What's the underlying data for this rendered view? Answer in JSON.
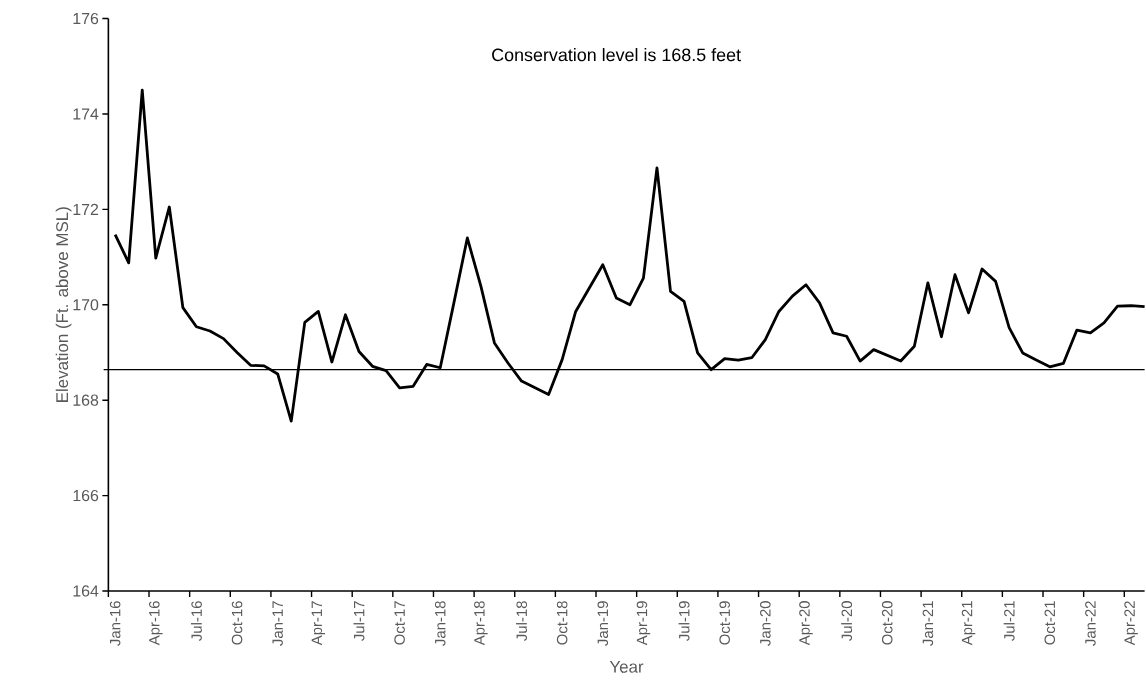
{
  "chart_data": {
    "type": "line",
    "xlabel": "Year",
    "ylabel": "Elevation (Ft. above MSL)",
    "annotations": [
      "Conservation level is 168.5 feet"
    ],
    "categories": [
      "Jan-16",
      null,
      null,
      "Apr-16",
      null,
      null,
      "Jul-16",
      null,
      null,
      "Oct-16",
      null,
      null,
      "Jan-17",
      null,
      null,
      "Apr-17",
      null,
      null,
      "Jul-17",
      null,
      null,
      "Oct-17",
      null,
      null,
      "Jan-18",
      null,
      null,
      "Apr-18",
      null,
      null,
      "Jul-18",
      null,
      null,
      "Oct-18",
      null,
      null,
      "Jan-19",
      null,
      null,
      "Apr-19",
      null,
      null,
      "Jul-19",
      null,
      null,
      "Oct-19",
      null,
      null,
      "Jan-20",
      null,
      null,
      "Apr-20",
      null,
      null,
      "Jul-20",
      null,
      null,
      "Oct-20",
      null,
      null,
      "Jan-21",
      null,
      null,
      "Apr-21",
      null,
      null,
      "Jul-21",
      null,
      null,
      "Oct-21",
      null,
      null,
      "Jan-22",
      null,
      null,
      "Apr-22",
      null
    ],
    "series": [
      {
        "color": "#000000",
        "values": [
          171.47,
          170.88,
          174.5,
          170.98,
          172.05,
          169.94,
          169.54,
          169.45,
          169.29,
          169.0,
          168.73,
          168.72,
          168.55,
          167.56,
          169.63,
          169.86,
          168.8,
          169.79,
          169.02,
          168.71,
          168.62,
          168.26,
          168.29,
          168.75,
          168.68,
          170.03,
          171.4,
          170.39,
          169.2,
          168.78,
          168.4,
          168.26,
          168.12,
          168.85,
          169.86,
          170.35,
          170.84,
          170.14,
          170.0,
          170.56,
          172.87,
          170.28,
          170.07,
          168.99,
          168.64,
          168.87,
          168.84,
          168.89,
          169.27,
          169.86,
          170.18,
          170.42,
          170.04,
          169.41,
          169.34,
          168.82,
          169.06,
          168.94,
          168.82,
          169.13,
          170.46,
          169.33,
          170.63,
          169.83,
          170.75,
          170.49,
          169.52,
          168.99,
          168.84,
          168.7,
          168.77,
          169.47,
          169.41,
          169.62,
          169.97,
          169.98,
          169.96
        ]
      }
    ],
    "ylim": [
      164,
      176
    ],
    "yticks": [
      164,
      166,
      168,
      170,
      172,
      174,
      176
    ],
    "ref_lines": [
      {
        "axis": "y",
        "value": 168.64,
        "color": "#000000"
      }
    ],
    "marker": "none",
    "line_style": "solid"
  }
}
